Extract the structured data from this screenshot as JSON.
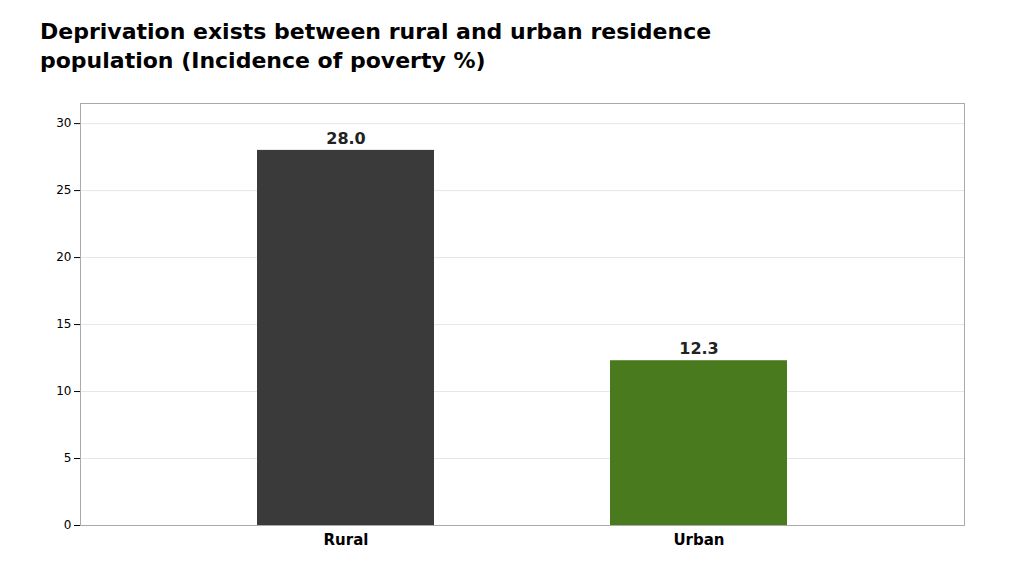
{
  "chart_data": {
    "type": "bar",
    "title": "Deprivation exists between rural and urban residence\npopulation (Incidence of poverty %)",
    "categories": [
      "Rural",
      "Urban"
    ],
    "values": [
      28.0,
      12.3
    ],
    "value_labels": [
      "28.0",
      "12.3"
    ],
    "colors": [
      "#3a3a3a",
      "#4a7a1e"
    ],
    "ylim": [
      0,
      31.5
    ],
    "yticks": [
      0,
      5,
      10,
      15,
      20,
      25,
      30
    ],
    "grid": true,
    "data_labels": true
  }
}
